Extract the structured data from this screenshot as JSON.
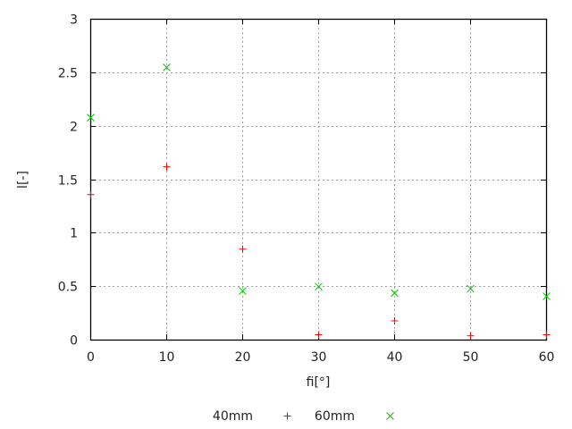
{
  "chart_data": {
    "type": "scatter",
    "title": "",
    "xlabel": "fi[°]",
    "ylabel": "l[-]",
    "xlim": [
      0,
      60
    ],
    "ylim": [
      0,
      3
    ],
    "xticks": [
      0,
      10,
      20,
      30,
      40,
      50,
      60
    ],
    "yticks": [
      0,
      0.5,
      1,
      1.5,
      2,
      2.5,
      3
    ],
    "ytick_labels": [
      "0",
      "0.5",
      "1",
      "1.5",
      "2",
      "2.5",
      "3"
    ],
    "grid": true,
    "legend_placement": "bottom-center",
    "series": [
      {
        "name": "40mm",
        "marker": "plus",
        "color": "#ff0000",
        "x": [
          0,
          10,
          20,
          30,
          40,
          50,
          60
        ],
        "y": [
          1.36,
          1.62,
          0.85,
          0.05,
          0.18,
          0.04,
          0.05
        ]
      },
      {
        "name": "60mm",
        "marker": "cross",
        "color": "#00c000",
        "x": [
          0,
          10,
          20,
          30,
          40,
          50,
          60
        ],
        "y": [
          2.08,
          2.55,
          0.46,
          0.5,
          0.44,
          0.48,
          0.41
        ]
      }
    ]
  }
}
